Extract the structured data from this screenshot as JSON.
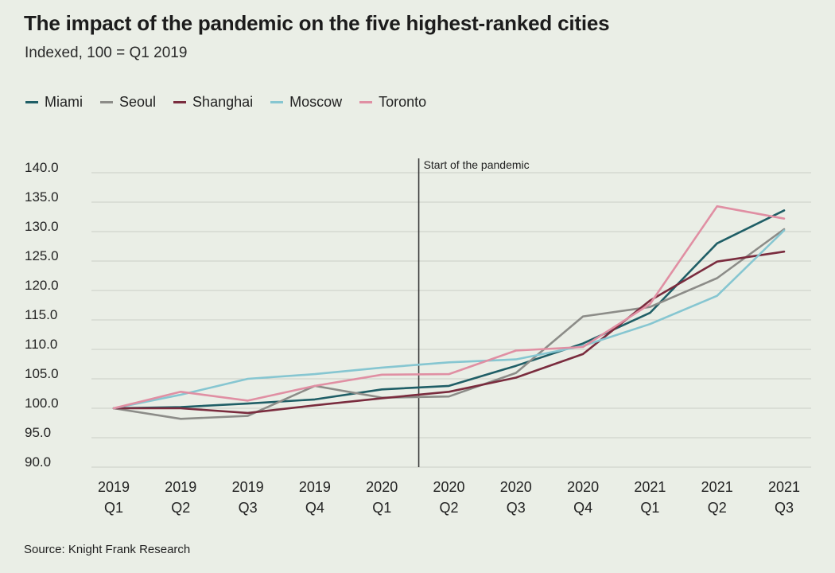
{
  "header": {
    "title": "The impact of the pandemic on the five highest-ranked cities",
    "subtitle": "Indexed, 100 = Q1 2019"
  },
  "footer": {
    "source": "Source: Knight Frank Research"
  },
  "chart_data": {
    "type": "line",
    "title": "The impact of the pandemic on the five highest-ranked cities",
    "subtitle": "Indexed, 100 = Q1 2019",
    "x": [
      [
        "2019",
        "Q1"
      ],
      [
        "2019",
        "Q2"
      ],
      [
        "2019",
        "Q3"
      ],
      [
        "2019",
        "Q4"
      ],
      [
        "2020",
        "Q1"
      ],
      [
        "2020",
        "Q2"
      ],
      [
        "2020",
        "Q3"
      ],
      [
        "2020",
        "Q4"
      ],
      [
        "2021",
        "Q1"
      ],
      [
        "2021",
        "Q2"
      ],
      [
        "2021",
        "Q3"
      ]
    ],
    "y_ticks": [
      "140.0",
      "135.0",
      "130.0",
      "125.0",
      "120.0",
      "115.0",
      "110.0",
      "105.0",
      "100.0",
      "95.0",
      "90.0"
    ],
    "ylim": [
      90,
      140
    ],
    "grid": "horizontal",
    "legend": "top-left",
    "annotation": {
      "text": "Start of the pandemic",
      "x": 4.55
    },
    "series": [
      {
        "name": "Miami",
        "color": "#1f5e66",
        "values": [
          100.0,
          100.2,
          100.8,
          101.5,
          103.2,
          103.8,
          107.2,
          111.0,
          116.2,
          128.0,
          133.6
        ]
      },
      {
        "name": "Seoul",
        "color": "#8c8c88",
        "values": [
          100.0,
          98.2,
          98.7,
          103.8,
          101.8,
          102.0,
          106.0,
          115.6,
          117.2,
          122.1,
          130.4
        ]
      },
      {
        "name": "Shanghai",
        "color": "#7a2c3e",
        "values": [
          100.0,
          100.0,
          99.2,
          100.5,
          101.7,
          102.8,
          105.2,
          109.2,
          118.3,
          124.9,
          126.6
        ]
      },
      {
        "name": "Moscow",
        "color": "#86c6d1",
        "values": [
          100.0,
          102.3,
          105.0,
          105.8,
          106.9,
          107.8,
          108.3,
          110.6,
          114.3,
          119.1,
          130.2
        ]
      },
      {
        "name": "Toronto",
        "color": "#e08fa3",
        "values": [
          100.0,
          102.8,
          101.3,
          103.8,
          105.7,
          105.8,
          109.8,
          110.4,
          117.7,
          134.3,
          132.2
        ]
      }
    ]
  }
}
